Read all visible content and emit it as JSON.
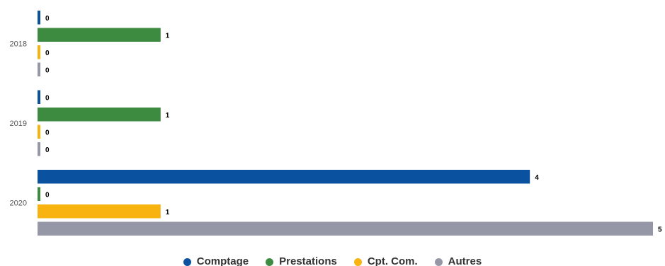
{
  "chart_data": {
    "type": "bar",
    "orientation": "horizontal",
    "categories": [
      "2018",
      "2019",
      "2020"
    ],
    "series": [
      {
        "name": "Comptage",
        "color": "#0a52a0",
        "values": [
          0,
          0,
          4
        ]
      },
      {
        "name": "Prestations",
        "color": "#3d8a41",
        "values": [
          1,
          1,
          0
        ]
      },
      {
        "name": "Cpt. Com.",
        "color": "#f9b311",
        "values": [
          0,
          0,
          1
        ]
      },
      {
        "name": "Autres",
        "color": "#9597a6",
        "values": [
          0,
          0,
          5
        ]
      }
    ],
    "title": "",
    "xlabel": "",
    "ylabel": "",
    "xlim": [
      0,
      5
    ],
    "grid": false,
    "data_labels": true,
    "legend_position": "bottom-center"
  }
}
